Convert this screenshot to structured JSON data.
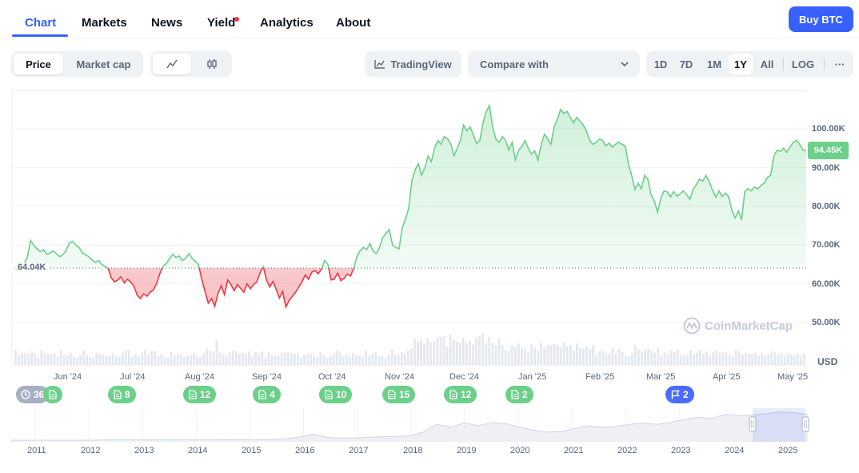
{
  "nav": {
    "tabs": [
      {
        "label": "Chart",
        "active": true
      },
      {
        "label": "Markets"
      },
      {
        "label": "News"
      },
      {
        "label": "Yield",
        "dot": true
      },
      {
        "label": "Analytics"
      },
      {
        "label": "About"
      }
    ],
    "buy_label": "Buy BTC"
  },
  "toolbar": {
    "mode": [
      "Price",
      "Market cap"
    ],
    "selected_mode": "Price",
    "chart_styles": [
      "line-chart-icon",
      "candlestick-icon"
    ],
    "tradingview_label": "TradingView",
    "compare_label": "Compare with",
    "ranges": [
      "1D",
      "7D",
      "1M",
      "1Y",
      "All",
      "LOG"
    ],
    "selected_range": "1Y",
    "more_label": "···"
  },
  "chart_data": {
    "type": "area",
    "currency": "USD",
    "current_price_label": "94.45K",
    "baseline_label": "64.04K",
    "baseline": 64.04,
    "y_ticks": [
      "100.00K",
      "90.00K",
      "80.00K",
      "70.00K",
      "60.00K",
      "50.00K"
    ],
    "x_ticks": [
      "Jun '24",
      "Jul '24",
      "Aug '24",
      "Sep '24",
      "Oct '24",
      "Nov '24",
      "Dec '24",
      "Jan '25",
      "Feb '25",
      "Mar '25",
      "Apr '25",
      "May '25"
    ],
    "colors": {
      "up": "#6ccf8a",
      "down": "#ea3943"
    },
    "series": [
      {
        "values": [
          64.0,
          63.5,
          64.5,
          65.2,
          66.8,
          71.2,
          70.0,
          69.0,
          68.3,
          68.8,
          67.6,
          67.9,
          68.5,
          67.8,
          67.0,
          67.5,
          68.6,
          70.5,
          71.0,
          70.0,
          69.4,
          68.0,
          67.5,
          67.0,
          66.2,
          65.5,
          66.0,
          65.0,
          64.5,
          64.0,
          61.5,
          60.5,
          61.0,
          61.8,
          60.2,
          61.2,
          60.4,
          59.4,
          57.0,
          56.2,
          57.4,
          56.8,
          57.8,
          58.4,
          60.0,
          62.6,
          64.5,
          65.2,
          66.5,
          67.6,
          66.8,
          67.2,
          66.0,
          66.6,
          67.8,
          66.6,
          65.8,
          64.9,
          61.0,
          58.0,
          55.0,
          56.2,
          54.2,
          57.5,
          59.5,
          57.2,
          61.0,
          59.8,
          58.2,
          59.8,
          58.8,
          57.8,
          60.0,
          58.7,
          59.8,
          60.5,
          62.8,
          64.5,
          61.0,
          59.2,
          60.6,
          58.6,
          56.3,
          58.0,
          54.0,
          55.7,
          56.8,
          57.8,
          59.2,
          60.5,
          62.3,
          61.2,
          63.0,
          63.4,
          62.6,
          63.8,
          66.0,
          65.0,
          61.0,
          61.2,
          62.8,
          60.8,
          61.4,
          62.5,
          62.0,
          64.0,
          67.0,
          68.6,
          69.4,
          68.8,
          70.4,
          68.4,
          67.8,
          69.4,
          72.0,
          73.0,
          74.0,
          70.0,
          69.4,
          69.0,
          74.5,
          76.6,
          79.5,
          86.5,
          89.5,
          91.0,
          88.0,
          90.0,
          93.0,
          91.5,
          95.0,
          97.0,
          96.0,
          98.0,
          97.5,
          96.2,
          93.0,
          95.0,
          97.0,
          101.0,
          99.5,
          100.5,
          98.5,
          96.2,
          97.0,
          101.5,
          104.5,
          106.0,
          100.5,
          97.3,
          96.5,
          98.0,
          97.0,
          94.5,
          96.5,
          92.0,
          94.5,
          95.4,
          97.0,
          95.0,
          93.5,
          94.3,
          91.9,
          96.0,
          98.6,
          97.4,
          96.0,
          100.5,
          102.5,
          105.0,
          104.0,
          104.5,
          103.0,
          101.5,
          103.0,
          102.0,
          101.0,
          99.5,
          97.0,
          96.0,
          96.4,
          97.4,
          97.0,
          95.6,
          96.3,
          95.3,
          96.0,
          96.6,
          96.0,
          95.6,
          91.0,
          88.0,
          84.3,
          86.0,
          84.5,
          88.0,
          87.0,
          83.0,
          81.4,
          78.5,
          82.0,
          84.0,
          83.7,
          82.4,
          83.8,
          82.6,
          83.2,
          84.0,
          83.0,
          81.8,
          84.4,
          85.6,
          87.0,
          86.5,
          88.0,
          86.3,
          84.2,
          82.4,
          84.0,
          82.5,
          83.4,
          82.5,
          79.0,
          77.0,
          78.8,
          76.5,
          83.8,
          84.6,
          84.0,
          85.0,
          84.5,
          85.4,
          86.0,
          87.5,
          88.0,
          93.0,
          94.5,
          94.2,
          95.0,
          94.0,
          95.3,
          96.5,
          97.0,
          96.0,
          94.5,
          94.45
        ]
      }
    ],
    "volume": [
      0.44,
      0.28,
      0.36,
      0.35,
      0.33,
      0.4,
      0.36,
      0.22,
      0.42,
      0.35,
      0.33,
      0.32,
      0.34,
      0.26,
      0.43,
      0.29,
      0.3,
      0.36,
      0.23,
      0.22,
      0.29,
      0.42,
      0.29,
      0.24,
      0.22,
      0.35,
      0.32,
      0.31,
      0.28,
      0.27,
      0.36,
      0.27,
      0.25,
      0.36,
      0.44,
      0.43,
      0.24,
      0.32,
      0.26,
      0.36,
      0.45,
      0.3,
      0.41,
      0.41,
      0.26,
      0.31,
      0.21,
      0.22,
      0.38,
      0.29,
      0.32,
      0.31,
      0.23,
      0.28,
      0.28,
      0.36,
      0.26,
      0.24,
      0.35,
      0.48,
      0.41,
      0.4,
      0.74,
      0.38,
      0.32,
      0.29,
      0.38,
      0.42,
      0.41,
      0.34,
      0.38,
      0.33,
      0.41,
      0.24,
      0.39,
      0.33,
      0.4,
      0.23,
      0.38,
      0.32,
      0.27,
      0.28,
      0.37,
      0.36,
      0.39,
      0.35,
      0.34,
      0.35,
      0.21,
      0.3,
      0.33,
      0.33,
      0.27,
      0.23,
      0.39,
      0.3,
      0.22,
      0.27,
      0.32,
      0.42,
      0.37,
      0.27,
      0.32,
      0.26,
      0.36,
      0.27,
      0.28,
      0.23,
      0.43,
      0.27,
      0.33,
      0.38,
      0.25,
      0.28,
      0.2,
      0.29,
      0.45,
      0.31,
      0.3,
      0.38,
      0.33,
      0.42,
      0.49,
      0.78,
      0.71,
      0.74,
      0.65,
      0.8,
      0.67,
      0.71,
      0.82,
      0.84,
      0.86,
      0.54,
      0.9,
      0.75,
      0.7,
      0.66,
      0.81,
      0.65,
      0.73,
      0.6,
      0.8,
      0.86,
      0.94,
      0.64,
      0.83,
      0.66,
      0.58,
      0.8,
      0.6,
      0.44,
      0.4,
      0.58,
      0.52,
      0.64,
      0.5,
      0.47,
      0.36,
      0.6,
      0.51,
      0.43,
      0.65,
      0.51,
      0.6,
      0.58,
      0.62,
      0.6,
      0.51,
      0.68,
      0.55,
      0.6,
      0.44,
      0.64,
      0.5,
      0.48,
      0.54,
      0.48,
      0.6,
      0.3,
      0.4,
      0.42,
      0.35,
      0.34,
      0.5,
      0.34,
      0.48,
      0.38,
      0.26,
      0.25,
      0.34,
      0.6,
      0.47,
      0.4,
      0.45,
      0.48,
      0.43,
      0.36,
      0.5,
      0.28,
      0.37,
      0.34,
      0.42,
      0.39,
      0.46,
      0.32,
      0.3,
      0.28,
      0.43,
      0.34,
      0.37,
      0.45,
      0.34,
      0.4,
      0.28,
      0.38,
      0.43,
      0.36,
      0.39,
      0.37,
      0.31,
      0.24,
      0.43,
      0.39,
      0.3,
      0.36,
      0.33,
      0.34,
      0.36,
      0.27,
      0.36,
      0.28,
      0.33,
      0.4,
      0.38,
      0.32,
      0.36,
      0.26,
      0.34,
      0.33,
      0.29,
      0.35,
      0.26,
      0.33
    ]
  },
  "events": {
    "clock_label": "36",
    "badges": [
      {
        "count": "8"
      },
      {
        "count": "12"
      },
      {
        "count": "4"
      },
      {
        "count": "10"
      },
      {
        "count": "15"
      },
      {
        "count": "12"
      },
      {
        "count": "2"
      }
    ],
    "flag_count": "2"
  },
  "watermark": "CoinMarketCap",
  "navigator": {
    "years": [
      "2011",
      "2012",
      "2013",
      "2014",
      "2015",
      "2016",
      "2017",
      "2018",
      "2019",
      "2020",
      "2021",
      "2022",
      "2023",
      "2024",
      "2025"
    ],
    "history": [
      0,
      0,
      0,
      0,
      0,
      0,
      0,
      0.01,
      0.01,
      0.01,
      0.01,
      0.01,
      0.01,
      0.01,
      0.01,
      0.01,
      0.02,
      0.02,
      0.02,
      0.02,
      0.05,
      0.12,
      0.2,
      0.1,
      0.07,
      0.08,
      0.1,
      0.12,
      0.13,
      0.15,
      0.28,
      0.55,
      0.45,
      0.6,
      0.5,
      0.62,
      0.58,
      0.45,
      0.35,
      0.28,
      0.3,
      0.4,
      0.5,
      0.45,
      0.48,
      0.55,
      0.6,
      0.55,
      0.62,
      0.72,
      0.8,
      0.75,
      0.9,
      0.85,
      0.88,
      0.92,
      0.98,
      0.95,
      0.9
    ]
  }
}
